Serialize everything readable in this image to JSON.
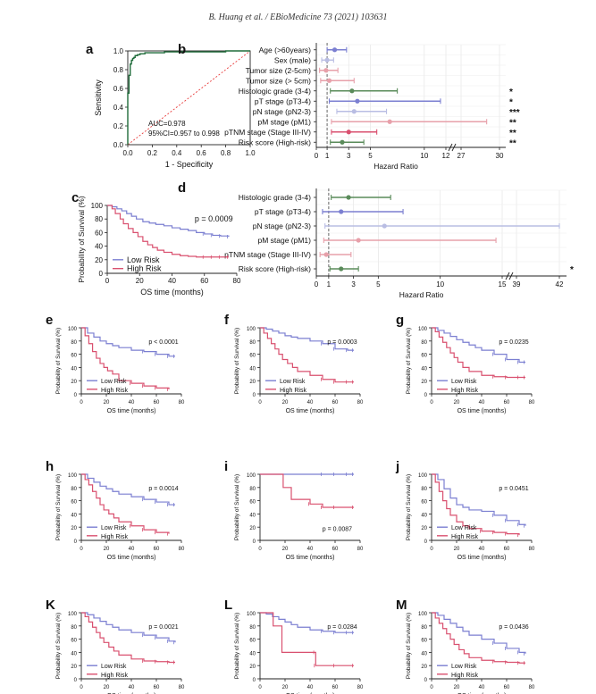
{
  "header": "B. Huang et al. / EBioMedicine 73 (2021) 103631",
  "colors": {
    "low": "#7b7fd1",
    "high": "#d9506f",
    "ref": "#e83b3b"
  },
  "panel_a": {
    "letter": "a",
    "chart_data": {
      "type": "line",
      "title": "",
      "xlabel": "1 - Specificity",
      "ylabel": "Sensitivity",
      "xlim": [
        0,
        1
      ],
      "ylim": [
        0,
        1
      ],
      "xticks": [
        "0.0",
        "0.2",
        "0.4",
        "0.6",
        "0.8",
        "1.0"
      ],
      "yticks": [
        "0.0",
        "0.2",
        "0.4",
        "0.6",
        "0.8",
        "1.0"
      ],
      "series": [
        {
          "name": "ROC",
          "x": [
            0,
            0,
            0.01,
            0.01,
            0.02,
            0.02,
            0.03,
            0.04,
            0.05,
            0.06,
            0.08,
            0.1,
            0.14,
            0.2,
            0.3,
            0.5,
            0.8,
            1.0
          ],
          "y": [
            0,
            0.55,
            0.62,
            0.74,
            0.8,
            0.86,
            0.9,
            0.92,
            0.93,
            0.95,
            0.96,
            0.97,
            0.98,
            0.98,
            0.99,
            0.99,
            1.0,
            1.0
          ]
        },
        {
          "name": "reference",
          "x": [
            0,
            1
          ],
          "y": [
            0,
            1
          ]
        }
      ],
      "annotations": [
        "AUC=0.978",
        "95%CI=0.957 to 0.998"
      ]
    }
  },
  "panel_b": {
    "letter": "b",
    "chart_data": {
      "type": "forest",
      "xlabel": "Hazard Ratio",
      "xticks": [
        "0",
        "1",
        "3",
        "5",
        "10",
        "12",
        "27",
        "30"
      ],
      "rows": [
        {
          "label": "Age (>60years)",
          "hr": 1.7,
          "lo": 1.0,
          "hi": 2.8,
          "sig": "",
          "color": "#7b7fd1"
        },
        {
          "label": "Sex (male)",
          "hr": 1.0,
          "lo": 0.5,
          "hi": 1.6,
          "sig": "",
          "color": "#b9bde3"
        },
        {
          "label": "Tumor size (2-5cm)",
          "hr": 0.9,
          "lo": 0.3,
          "hi": 2.0,
          "sig": "",
          "color": "#e7a0aa"
        },
        {
          "label": "Tumor size (> 5cm)",
          "hr": 1.2,
          "lo": 0.4,
          "hi": 3.5,
          "sig": "",
          "color": "#e7a0aa"
        },
        {
          "label": "Histologic grade (3-4)",
          "hr": 3.3,
          "lo": 1.3,
          "hi": 7.5,
          "sig": "*",
          "color": "#5a8b5a"
        },
        {
          "label": "pT stage (pT3-4)",
          "hr": 3.8,
          "lo": 1.2,
          "hi": 11.5,
          "sig": "*",
          "color": "#7b7fd1"
        },
        {
          "label": "pN stage (pN2-3)",
          "hr": 3.5,
          "lo": 1.9,
          "hi": 6.5,
          "sig": "***",
          "color": "#b9bde3"
        },
        {
          "label": "pM stage (pM1)",
          "hr": 6.8,
          "lo": 1.4,
          "hi": 29,
          "sig": "**",
          "color": "#e7a0aa"
        },
        {
          "label": "pTNM stage (Stage III-IV)",
          "hr": 3.0,
          "lo": 1.4,
          "hi": 5.6,
          "sig": "**",
          "color": "#d9506f"
        },
        {
          "label": "Risk score (High-risk)",
          "hr": 2.4,
          "lo": 1.3,
          "hi": 4.4,
          "sig": "**",
          "color": "#5a8b5a"
        }
      ]
    }
  },
  "panel_c": {
    "letter": "c",
    "chart_data": {
      "type": "line",
      "xlabel": "OS time (months)",
      "ylabel": "Probability of Survival (%)",
      "xlim": [
        0,
        80
      ],
      "ylim": [
        0,
        100
      ],
      "xticks": [
        "0",
        "20",
        "40",
        "60",
        "80"
      ],
      "yticks": [
        "0",
        "20",
        "40",
        "60",
        "80",
        "100"
      ],
      "pvalue": "p = 0.0009",
      "series": [
        {
          "name": "Low Risk",
          "x": [
            0,
            3,
            6,
            9,
            12,
            15,
            18,
            22,
            26,
            30,
            35,
            40,
            45,
            50,
            55,
            60,
            65,
            70,
            75
          ],
          "y": [
            100,
            98,
            95,
            92,
            88,
            84,
            80,
            76,
            74,
            72,
            70,
            67,
            65,
            63,
            60,
            58,
            56,
            55,
            54
          ]
        },
        {
          "name": "High Risk",
          "x": [
            0,
            3,
            5,
            8,
            10,
            13,
            16,
            19,
            22,
            25,
            28,
            31,
            35,
            40,
            45,
            50,
            55,
            60,
            65,
            70,
            75
          ],
          "y": [
            100,
            95,
            88,
            80,
            73,
            66,
            60,
            54,
            47,
            42,
            38,
            34,
            31,
            28,
            26,
            25,
            24,
            24,
            24,
            24,
            24
          ]
        }
      ]
    }
  },
  "panel_d": {
    "letter": "d",
    "chart_data": {
      "type": "forest",
      "xlabel": "Hazard Ratio",
      "xticks": [
        "0",
        "1",
        "3",
        "5",
        "10",
        "15",
        "39",
        "42"
      ],
      "rows": [
        {
          "label": "Histologic grade (3-4)",
          "hr": 2.6,
          "lo": 1.2,
          "hi": 6.0,
          "sig": "",
          "color": "#5a8b5a"
        },
        {
          "label": "pT stage (pT3-4)",
          "hr": 2.0,
          "lo": 0.5,
          "hi": 7.0,
          "sig": "",
          "color": "#7b7fd1"
        },
        {
          "label": "pN stage (pN2-3)",
          "hr": 5.5,
          "lo": 0.7,
          "hi": 42,
          "sig": "",
          "color": "#b9bde3"
        },
        {
          "label": "pM stage (pM1)",
          "hr": 3.4,
          "lo": 0.6,
          "hi": 14.5,
          "sig": "",
          "color": "#e7a0aa"
        },
        {
          "label": "pTNM stage (Stage III-IV)",
          "hr": 0.8,
          "lo": 0.3,
          "hi": 2.8,
          "sig": "",
          "color": "#e7a0aa"
        },
        {
          "label": "Risk score (High-risk)",
          "hr": 2.0,
          "lo": 1.1,
          "hi": 3.4,
          "sig": "*",
          "color": "#5a8b5a"
        }
      ]
    }
  },
  "small_common": {
    "xlabel": "OS time (months)",
    "ylabel": "Probability of Survival (%)",
    "xticks": [
      "0",
      "20",
      "40",
      "60",
      "80"
    ],
    "yticks": [
      "0",
      "20",
      "40",
      "60",
      "80",
      "100"
    ],
    "legend_low": "Low Risk",
    "legend_high": "High Risk"
  },
  "small_panels": [
    {
      "letter": "e",
      "pvalue": "p < 0.0001",
      "low": {
        "x": [
          0,
          5,
          10,
          15,
          20,
          25,
          30,
          40,
          50,
          60,
          70,
          75
        ],
        "y": [
          100,
          92,
          86,
          80,
          76,
          73,
          70,
          66,
          64,
          60,
          57,
          57
        ]
      },
      "high": {
        "x": [
          0,
          3,
          6,
          9,
          12,
          15,
          18,
          21,
          25,
          30,
          40,
          50,
          60,
          70
        ],
        "y": [
          100,
          88,
          76,
          64,
          54,
          46,
          40,
          35,
          30,
          20,
          16,
          12,
          9,
          7
        ]
      }
    },
    {
      "letter": "f",
      "pvalue": "p = 0.0003",
      "low": {
        "x": [
          0,
          5,
          10,
          15,
          20,
          25,
          30,
          40,
          50,
          60,
          70,
          75
        ],
        "y": [
          100,
          98,
          95,
          92,
          88,
          86,
          84,
          80,
          76,
          68,
          66,
          66
        ]
      },
      "high": {
        "x": [
          0,
          3,
          6,
          9,
          12,
          15,
          18,
          22,
          26,
          30,
          40,
          50,
          60,
          70,
          75
        ],
        "y": [
          100,
          92,
          84,
          76,
          68,
          60,
          52,
          46,
          40,
          34,
          28,
          22,
          18,
          18,
          18
        ]
      }
    },
    {
      "letter": "g",
      "pvalue": "p = 0.0235",
      "low": {
        "x": [
          0,
          5,
          10,
          15,
          20,
          25,
          30,
          35,
          40,
          50,
          60,
          70,
          75
        ],
        "y": [
          100,
          96,
          92,
          87,
          82,
          78,
          74,
          70,
          66,
          60,
          52,
          48,
          48
        ]
      },
      "high": {
        "x": [
          0,
          3,
          6,
          9,
          12,
          15,
          18,
          21,
          25,
          30,
          40,
          50,
          60,
          70,
          75
        ],
        "y": [
          100,
          94,
          86,
          78,
          70,
          62,
          55,
          48,
          40,
          34,
          28,
          26,
          25,
          25,
          25
        ]
      }
    },
    {
      "letter": "h",
      "pvalue": "p = 0.0014",
      "low": {
        "x": [
          0,
          5,
          10,
          15,
          20,
          25,
          30,
          40,
          50,
          60,
          70,
          75
        ],
        "y": [
          100,
          94,
          88,
          82,
          78,
          74,
          70,
          66,
          62,
          58,
          54,
          54
        ]
      },
      "high": {
        "x": [
          0,
          3,
          6,
          9,
          12,
          15,
          18,
          22,
          26,
          30,
          40,
          50,
          60,
          70
        ],
        "y": [
          100,
          92,
          84,
          74,
          64,
          54,
          46,
          40,
          34,
          28,
          22,
          16,
          12,
          10
        ]
      }
    },
    {
      "letter": "i",
      "pvalue": "p = 0.0087",
      "low": {
        "x": [
          0,
          10,
          20,
          30,
          40,
          50,
          60,
          70,
          75
        ],
        "y": [
          100,
          100,
          100,
          100,
          100,
          100,
          100,
          100,
          100
        ]
      },
      "high": {
        "x": [
          0,
          10,
          18,
          18.5,
          25,
          30,
          40,
          50,
          60,
          75
        ],
        "y": [
          100,
          100,
          100,
          80,
          62,
          62,
          55,
          50,
          50,
          50
        ]
      }
    },
    {
      "letter": "j",
      "pvalue": "p = 0.0451",
      "low": {
        "x": [
          0,
          5,
          10,
          15,
          20,
          25,
          30,
          40,
          50,
          60,
          70,
          75
        ],
        "y": [
          100,
          92,
          78,
          64,
          54,
          50,
          46,
          44,
          38,
          30,
          24,
          22
        ]
      },
      "high": {
        "x": [
          0,
          3,
          6,
          9,
          12,
          15,
          20,
          25,
          30,
          40,
          50,
          60,
          70
        ],
        "y": [
          100,
          88,
          74,
          60,
          48,
          38,
          28,
          22,
          18,
          14,
          12,
          10,
          8
        ]
      }
    },
    {
      "letter": "K",
      "pvalue": "p = 0.0021",
      "low": {
        "x": [
          0,
          5,
          10,
          15,
          20,
          25,
          30,
          40,
          50,
          60,
          70,
          75
        ],
        "y": [
          100,
          97,
          92,
          87,
          82,
          78,
          74,
          70,
          66,
          62,
          57,
          55
        ]
      },
      "high": {
        "x": [
          0,
          3,
          6,
          9,
          12,
          15,
          18,
          22,
          26,
          30,
          40,
          50,
          60,
          70,
          75
        ],
        "y": [
          100,
          94,
          86,
          78,
          70,
          62,
          55,
          48,
          42,
          36,
          30,
          27,
          26,
          25,
          25
        ]
      }
    },
    {
      "letter": "L",
      "pvalue": "p = 0.0284",
      "low": {
        "x": [
          0,
          5,
          10,
          15,
          20,
          25,
          30,
          40,
          50,
          60,
          70,
          75
        ],
        "y": [
          100,
          98,
          94,
          90,
          86,
          82,
          78,
          74,
          72,
          70,
          70,
          70
        ]
      },
      "high": {
        "x": [
          0,
          5,
          10,
          10.5,
          17,
          17.5,
          30,
          44,
          44.5,
          60,
          75
        ],
        "y": [
          100,
          100,
          100,
          80,
          80,
          40,
          40,
          40,
          20,
          20,
          20
        ]
      }
    },
    {
      "letter": "M",
      "pvalue": "p = 0.0436",
      "low": {
        "x": [
          0,
          5,
          10,
          15,
          20,
          25,
          30,
          40,
          50,
          60,
          70,
          75
        ],
        "y": [
          100,
          96,
          90,
          84,
          78,
          72,
          66,
          60,
          54,
          46,
          40,
          38
        ]
      },
      "high": {
        "x": [
          0,
          3,
          6,
          9,
          12,
          15,
          18,
          22,
          26,
          30,
          40,
          50,
          60,
          70,
          75
        ],
        "y": [
          100,
          92,
          84,
          76,
          68,
          60,
          52,
          44,
          38,
          32,
          28,
          26,
          25,
          24,
          24
        ]
      }
    }
  ]
}
